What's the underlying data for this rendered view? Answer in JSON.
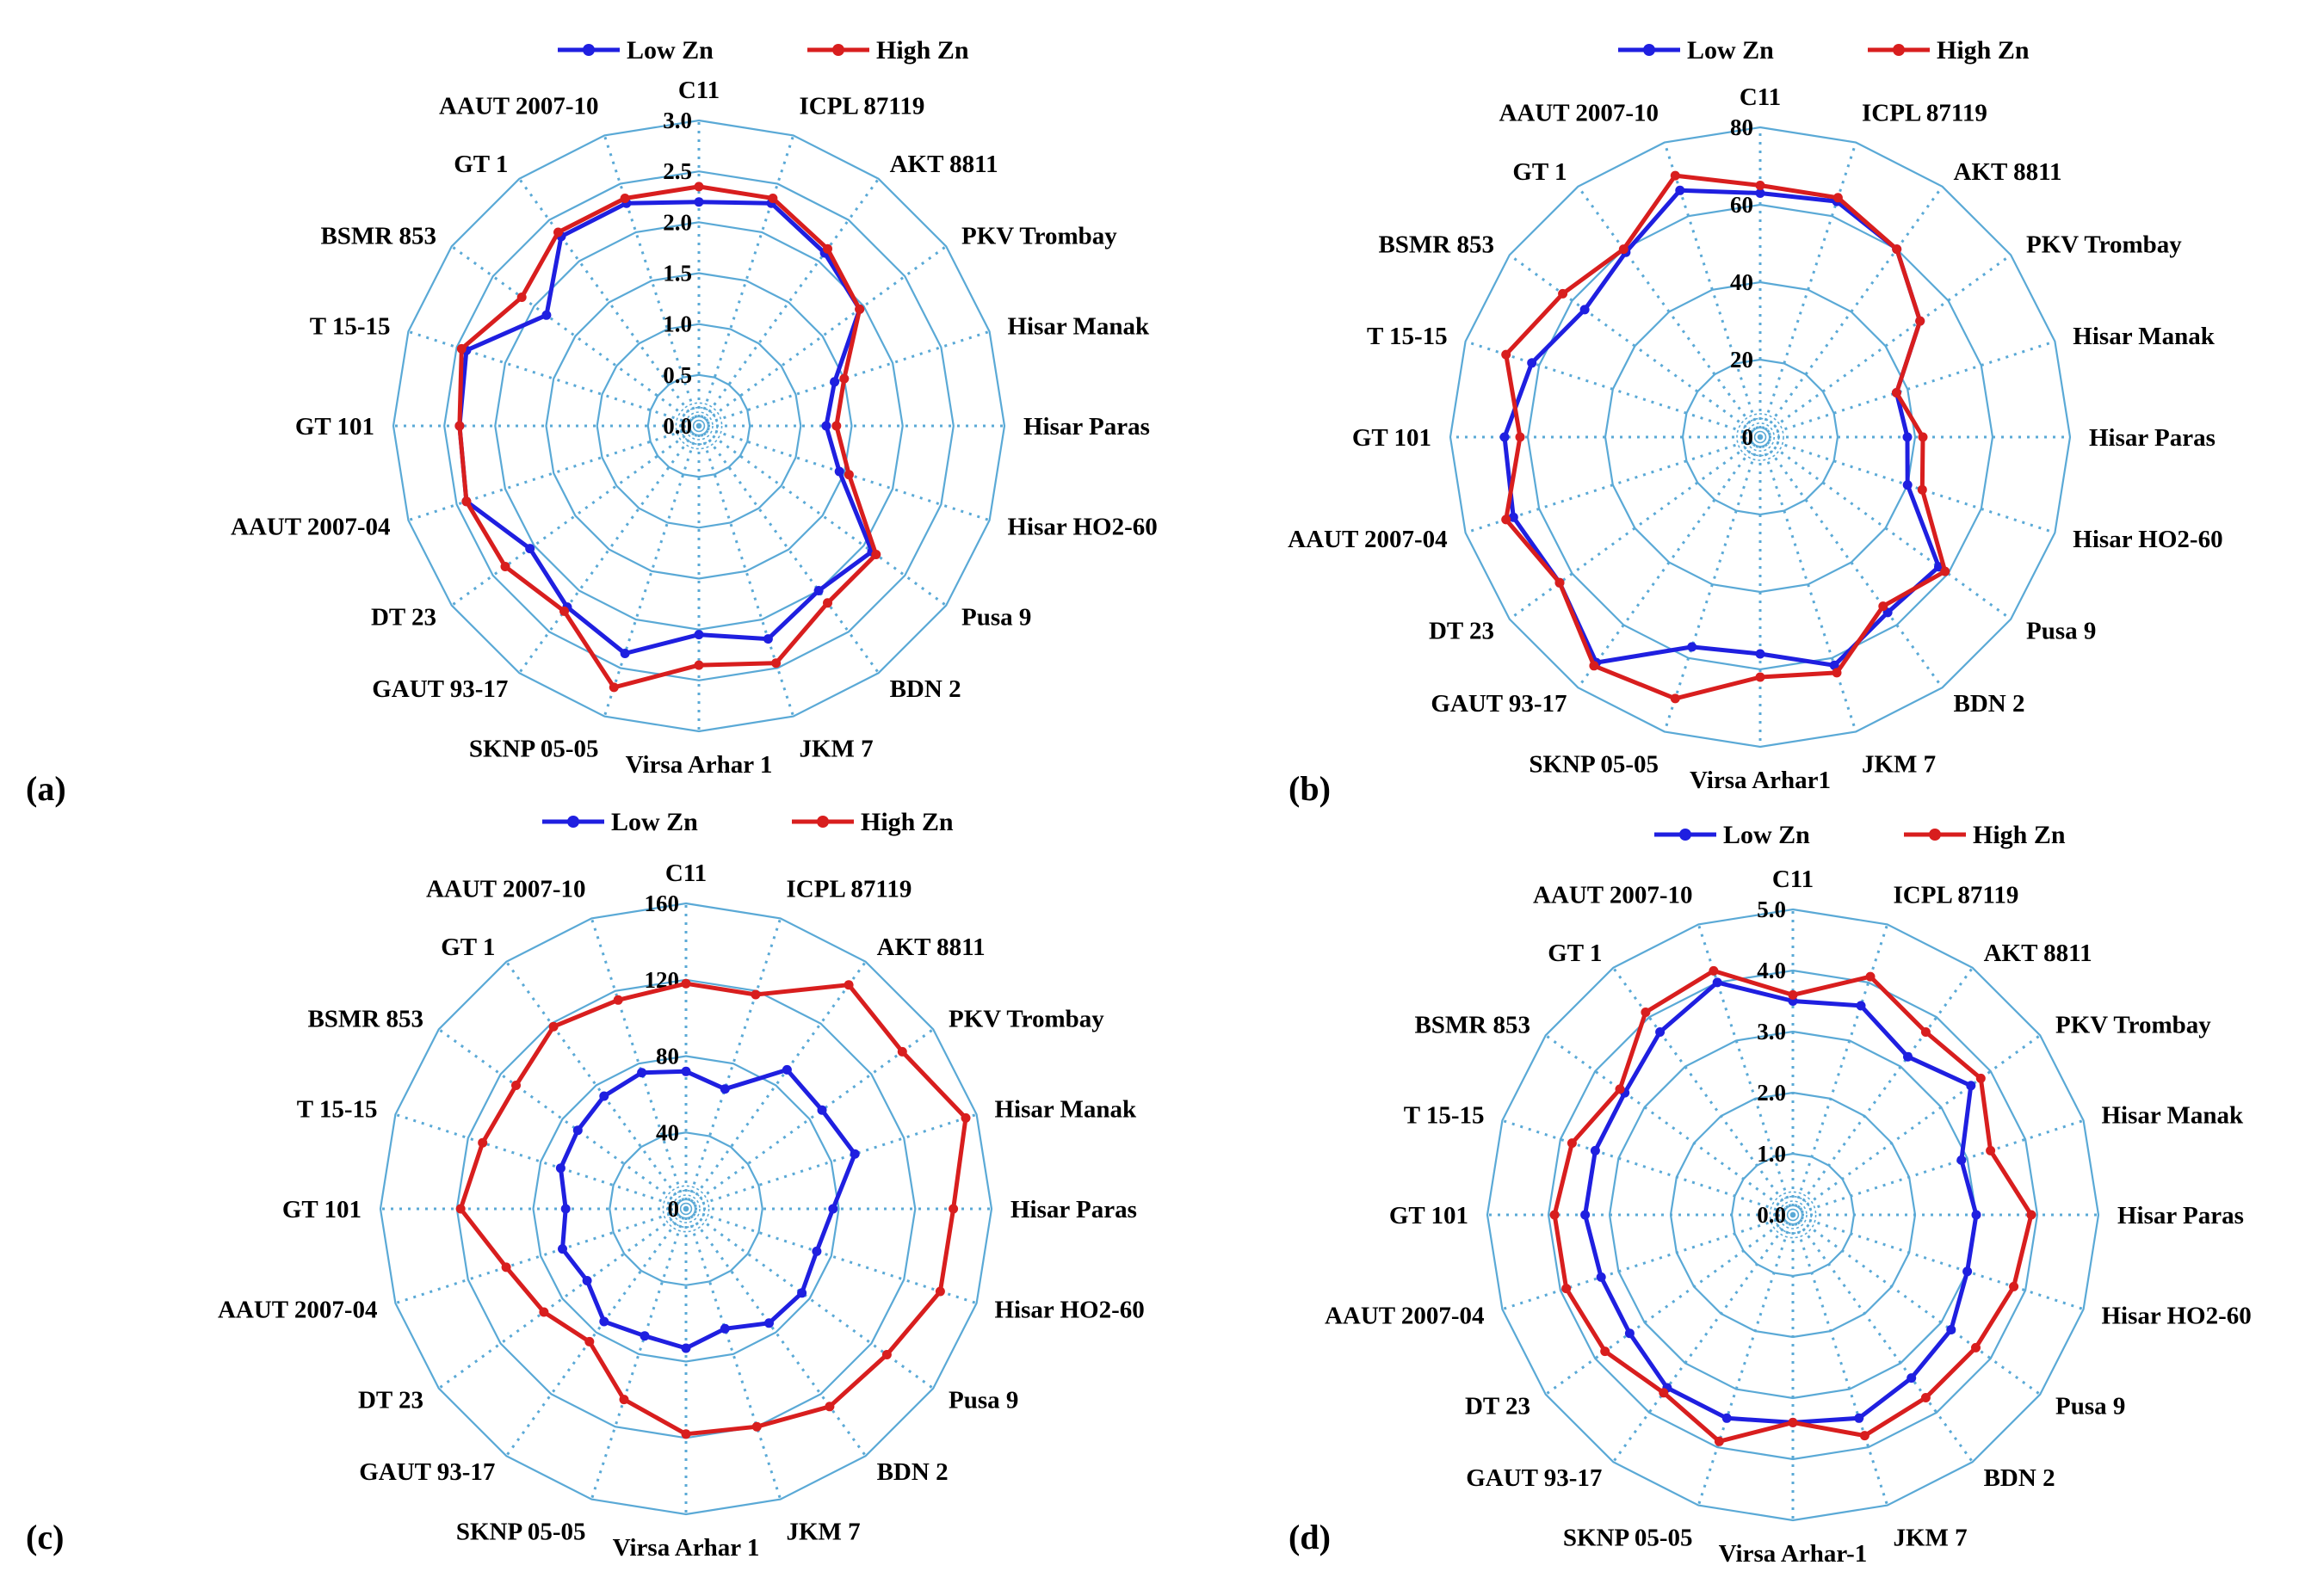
{
  "colors": {
    "low": "#1f1fe0",
    "high": "#d81e1e",
    "grid": "#5aa9d6"
  },
  "chart_data": [
    {
      "type": "radar",
      "panel": "(a)",
      "categories": [
        "C11",
        "ICPL 87119",
        "AKT 8811",
        "PKV Trombay",
        "Hisar Manak",
        "Hisar Paras",
        "Hisar HO2-60",
        "Pusa 9",
        "BDN 2",
        "JKM 7",
        "Virsa Arhar 1",
        "SKNP 05-05",
        "GAUT 93-17",
        "DT 23",
        "AAUT 2007-04",
        "GT  101",
        "T 15-15",
        "BSMR 853",
        "GT 1",
        "AAUT 2007-10"
      ],
      "ticks": [
        "0.0",
        "0.5",
        "1.0",
        "1.5",
        "2.0",
        "2.5",
        "3.0"
      ],
      "rmax": 3.0,
      "legend": [
        "Low Zn",
        "High Zn"
      ],
      "series": [
        {
          "name": "Low Zn",
          "values": [
            2.2,
            2.3,
            2.1,
            1.95,
            1.4,
            1.25,
            1.45,
            2.1,
            2.0,
            2.2,
            2.05,
            2.35,
            2.2,
            2.05,
            2.4,
            2.35,
            2.4,
            1.85,
            2.3,
            2.3
          ]
        },
        {
          "name": "High Zn",
          "values": [
            2.35,
            2.35,
            2.15,
            1.95,
            1.5,
            1.35,
            1.55,
            2.15,
            2.15,
            2.45,
            2.35,
            2.7,
            2.25,
            2.35,
            2.4,
            2.35,
            2.45,
            2.15,
            2.35,
            2.35
          ]
        }
      ]
    },
    {
      "type": "radar",
      "panel": "(b)",
      "categories": [
        "C11",
        "ICPL 87119",
        "AKT 8811",
        "PKV Trombay",
        "Hisar Manak",
        "Hisar Paras",
        "Hisar HO2-60",
        "Pusa 9",
        "BDN 2",
        "JKM 7",
        "Virsa Arhar1",
        "SKNP 05-05",
        "GAUT 93-17",
        "DT 23",
        "AAUT 2007-04",
        "GT  101",
        "T 15-15",
        "BSMR 853",
        "GT 1",
        "AAUT 2007-10"
      ],
      "ticks": [
        "0",
        "20",
        "40",
        "60",
        "80"
      ],
      "rmax": 80,
      "legend": [
        "Low Zn",
        "High Zn"
      ],
      "series": [
        {
          "name": "Low Zn",
          "values": [
            63,
            64,
            60,
            51,
            37,
            38,
            40,
            57,
            56,
            62,
            56,
            57,
            72,
            64,
            67,
            66,
            62,
            56,
            59,
            67
          ]
        },
        {
          "name": "High Zn",
          "values": [
            65,
            65,
            60,
            51,
            37,
            42,
            44,
            59,
            54,
            64,
            62,
            71,
            73,
            64,
            69,
            62,
            69,
            63,
            60,
            71
          ]
        }
      ]
    },
    {
      "type": "radar",
      "panel": "(c)",
      "categories": [
        "C11",
        "ICPL 87119",
        "AKT 8811",
        "PKV Trombay",
        "Hisar Manak",
        "Hisar Paras",
        "Hisar HO2-60",
        "Pusa 9",
        "BDN 2",
        "JKM 7",
        "Virsa Arhar 1",
        "SKNP 05-05",
        "GAUT 93-17",
        "DT 23",
        "AAUT 2007-04",
        "GT  101",
        "T 15-15",
        "BSMR 853",
        "GT 1",
        "AAUT 2007-10"
      ],
      "ticks": [
        "0",
        "40",
        "80",
        "120",
        "160"
      ],
      "rmax": 160,
      "legend": [
        "Low Zn",
        "High Zn"
      ],
      "series": [
        {
          "name": "Low Zn",
          "values": [
            72,
            66,
            90,
            88,
            93,
            77,
            72,
            75,
            74,
            66,
            73,
            70,
            73,
            64,
            68,
            63,
            69,
            70,
            73,
            75
          ]
        },
        {
          "name": "High Zn",
          "values": [
            118,
            118,
            145,
            140,
            154,
            140,
            140,
            130,
            128,
            120,
            118,
            105,
            86,
            92,
            99,
            118,
            112,
            110,
            118,
            115
          ]
        }
      ]
    },
    {
      "type": "radar",
      "panel": "(d)",
      "categories": [
        "C11",
        "ICPL 87119",
        "AKT 8811",
        "PKV Trombay",
        "Hisar Manak",
        "Hisar Paras",
        "Hisar HO2-60",
        "Pusa 9",
        "BDN 2",
        "JKM 7",
        "Virsa Arhar-1",
        "SKNP 05-05",
        "GAUT 93-17",
        "DT 23",
        "AAUT 2007-04",
        "GT  101",
        "T 15-15",
        "BSMR 853",
        "GT 1",
        "AAUT 2007-10"
      ],
      "ticks": [
        "0.0",
        "1.0",
        "2.0",
        "3.0",
        "4.0",
        "5.0"
      ],
      "rmax": 5.0,
      "legend": [
        "Low Zn",
        "High Zn"
      ],
      "series": [
        {
          "name": "Low Zn",
          "values": [
            3.5,
            3.6,
            3.2,
            3.6,
            2.9,
            3.0,
            3.0,
            3.2,
            3.3,
            3.5,
            3.4,
            3.5,
            3.5,
            3.3,
            3.3,
            3.4,
            3.4,
            3.4,
            3.7,
            4.0
          ]
        },
        {
          "name": "High Zn",
          "values": [
            3.6,
            4.1,
            3.7,
            3.8,
            3.4,
            3.9,
            3.8,
            3.7,
            3.7,
            3.8,
            3.4,
            3.9,
            3.6,
            3.8,
            3.9,
            3.9,
            3.8,
            3.5,
            4.1,
            4.2
          ]
        }
      ]
    }
  ]
}
